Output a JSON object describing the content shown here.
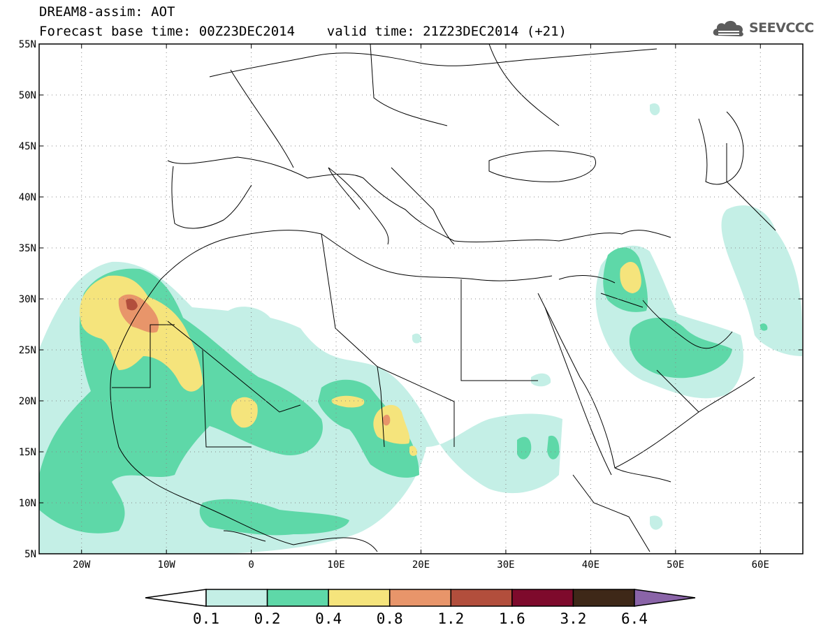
{
  "header": {
    "title_line1": "DREAM8-assim: AOT",
    "title_line2": "Forecast base time: 00Z23DEC2014    valid time: 21Z23DEC2014 (+21)",
    "logo_text": "SEEVCCC"
  },
  "map": {
    "lon_range": [
      -25,
      65
    ],
    "lat_range": [
      5,
      55
    ],
    "lon_ticks": [
      {
        "value": -20,
        "label": "20W"
      },
      {
        "value": -10,
        "label": "10W"
      },
      {
        "value": 0,
        "label": "0"
      },
      {
        "value": 10,
        "label": "10E"
      },
      {
        "value": 20,
        "label": "20E"
      },
      {
        "value": 30,
        "label": "30E"
      },
      {
        "value": 40,
        "label": "40E"
      },
      {
        "value": 50,
        "label": "50E"
      },
      {
        "value": 60,
        "label": "60E"
      }
    ],
    "lat_ticks": [
      {
        "value": 55,
        "label": "55N"
      },
      {
        "value": 50,
        "label": "50N"
      },
      {
        "value": 45,
        "label": "45N"
      },
      {
        "value": 40,
        "label": "40N"
      },
      {
        "value": 35,
        "label": "35N"
      },
      {
        "value": 30,
        "label": "30N"
      },
      {
        "value": 25,
        "label": "25N"
      },
      {
        "value": 20,
        "label": "20N"
      },
      {
        "value": 15,
        "label": "15N"
      },
      {
        "value": 10,
        "label": "10N"
      },
      {
        "value": 5,
        "label": "5N"
      }
    ],
    "grid": "dotted"
  },
  "colorbar": {
    "labels": [
      "0.1",
      "0.2",
      "0.4",
      "0.8",
      "1.2",
      "1.6",
      "3.2",
      "6.4"
    ],
    "colors": [
      "#ffffff",
      "#c4efe6",
      "#5ed8a8",
      "#f5e47c",
      "#e8956a",
      "#b24e3c",
      "#7e0a2c",
      "#3e2818",
      "#8a64a8"
    ]
  },
  "colors": {
    "level_0_1": "#c4efe6",
    "level_0_2": "#5ed8a8",
    "level_0_4": "#f5e47c",
    "level_0_8": "#e8956a",
    "level_1_2": "#b24e3c",
    "border": "#000000"
  }
}
